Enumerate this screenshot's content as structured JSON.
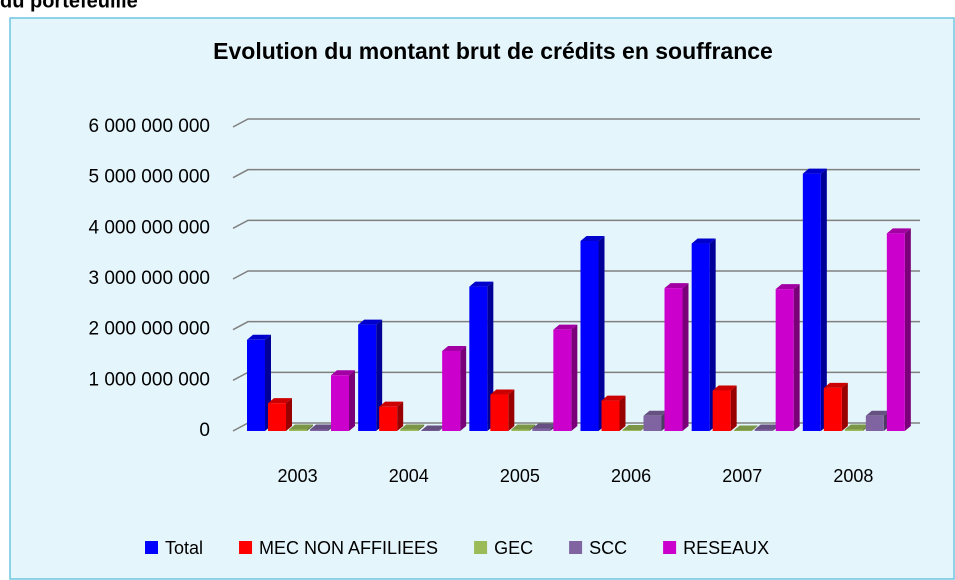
{
  "header": {
    "text": "du portefeuille"
  },
  "chart_data": {
    "type": "bar3d",
    "title": "Evolution du montant brut de crédits en souffrance",
    "categories": [
      "2003",
      "2004",
      "2005",
      "2006",
      "2007",
      "2008"
    ],
    "series": [
      {
        "name": "Total",
        "color": "#0000ff",
        "values": [
          1800000000,
          2100000000,
          2850000000,
          3750000000,
          3700000000,
          5080000000
        ]
      },
      {
        "name": "MEC NON AFFILIEES",
        "color": "#ff0000",
        "values": [
          550000000,
          480000000,
          720000000,
          600000000,
          800000000,
          850000000
        ]
      },
      {
        "name": "GEC",
        "color": "#9bbb59",
        "values": [
          30000000,
          30000000,
          30000000,
          20000000,
          10000000,
          30000000
        ]
      },
      {
        "name": "SCC",
        "color": "#8064a2",
        "values": [
          30000000,
          10000000,
          50000000,
          300000000,
          30000000,
          300000000
        ]
      },
      {
        "name": "RESEAUX",
        "color": "#cc00cc",
        "values": [
          1100000000,
          1580000000,
          2000000000,
          2820000000,
          2800000000,
          3900000000
        ]
      }
    ],
    "ylim": [
      0,
      6000000000
    ],
    "yticks": [
      0,
      {
        "value": 1000000000,
        "label": "1 000 000 000"
      },
      {
        "value": 2000000000,
        "label": "2 000 000 000"
      },
      {
        "value": 3000000000,
        "label": "3 000 000 000"
      },
      {
        "value": 4000000000,
        "label": "4 000 000 000"
      },
      {
        "value": 5000000000,
        "label": "5 000 000 000"
      },
      {
        "value": 6000000000,
        "label": "6 000 000 000"
      }
    ],
    "grid": true,
    "legend": "bottom"
  }
}
